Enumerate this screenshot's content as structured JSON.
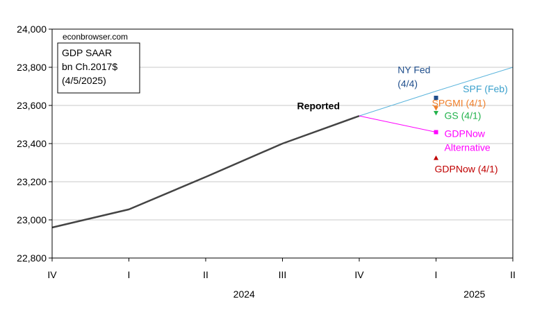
{
  "chart_data": {
    "type": "line",
    "watermark": "econbrowser.com",
    "legend_box": [
      "GDP SAAR",
      "bn Ch.2017$",
      "(4/5/2025)"
    ],
    "categories": [
      "IV",
      "I",
      "II",
      "III",
      "IV",
      "I",
      "II"
    ],
    "year_labels": [
      {
        "text": "2024",
        "center_index": 2.5
      },
      {
        "text": "2025",
        "center_index": 5.5
      }
    ],
    "ylim": [
      22800,
      24000
    ],
    "yticks": [
      22800,
      23000,
      23200,
      23400,
      23600,
      23800,
      24000
    ],
    "ytick_labels": [
      "22,800",
      "23,000",
      "23,200",
      "23,400",
      "23,600",
      "23,800",
      "24,000"
    ],
    "grid": true,
    "series": [
      {
        "name": "Reported",
        "color": "#444444",
        "x": [
          0,
          1,
          2,
          3,
          4
        ],
        "values": [
          22960,
          23055,
          23225,
          23400,
          23545
        ]
      },
      {
        "name": "SPF (Feb)",
        "color": "#5ab4dc",
        "x": [
          4,
          5,
          6
        ],
        "values": [
          23545,
          23675,
          23800
        ]
      },
      {
        "name": "GDPNow Alternative",
        "color": "#ff00ff",
        "x": [
          4,
          5
        ],
        "values": [
          23545,
          23460
        ]
      }
    ],
    "points": [
      {
        "name": "NY Fed (4/4)",
        "x": 5,
        "value": 23640,
        "color": "#1f4e8c",
        "marker": "square"
      },
      {
        "name": "SPGMI (4/1)",
        "x": 5,
        "value": 23585,
        "color": "#f07f2a",
        "marker": "triangle-down"
      },
      {
        "name": "GS (4/1)",
        "x": 5,
        "value": 23560,
        "color": "#22b24c",
        "marker": "triangle-down"
      },
      {
        "name": "GDPNow Alternative",
        "x": 5,
        "value": 23460,
        "color": "#ff00ff",
        "marker": "square"
      },
      {
        "name": "GDPNow (4/1)",
        "x": 5,
        "value": 23325,
        "color": "#c00000",
        "marker": "triangle-up"
      }
    ],
    "annotations": [
      {
        "lines": [
          "Reported"
        ],
        "color": "#000000",
        "bold": true,
        "anchor": "end",
        "x": 4.0,
        "value": 23580,
        "dx": -28
      },
      {
        "lines": [
          "NY Fed",
          "(4/4)"
        ],
        "color": "#1f4e8c",
        "bold": false,
        "anchor": "start",
        "x": 4.5,
        "value": 23770,
        "dx": 0
      },
      {
        "lines": [
          "SPF (Feb)"
        ],
        "color": "#3aa0cc",
        "bold": false,
        "anchor": "start",
        "x": 5.35,
        "value": 23670,
        "dx": 0
      },
      {
        "lines": [
          "SPGMI (4/1)"
        ],
        "color": "#f07f2a",
        "bold": false,
        "anchor": "start",
        "x": 5.0,
        "value": 23595,
        "dx": -6
      },
      {
        "lines": [
          "GS (4/1)"
        ],
        "color": "#22b24c",
        "bold": false,
        "anchor": "start",
        "x": 5.0,
        "value": 23530,
        "dx": 12
      },
      {
        "lines": [
          "GDPNow",
          "Alternative"
        ],
        "color": "#ff00ff",
        "bold": false,
        "anchor": "start",
        "x": 5.0,
        "value": 23435,
        "dx": 12
      },
      {
        "lines": [
          "GDPNow (4/1)"
        ],
        "color": "#c00000",
        "bold": false,
        "anchor": "start",
        "x": 5.0,
        "value": 23250,
        "dx": -2
      }
    ]
  }
}
